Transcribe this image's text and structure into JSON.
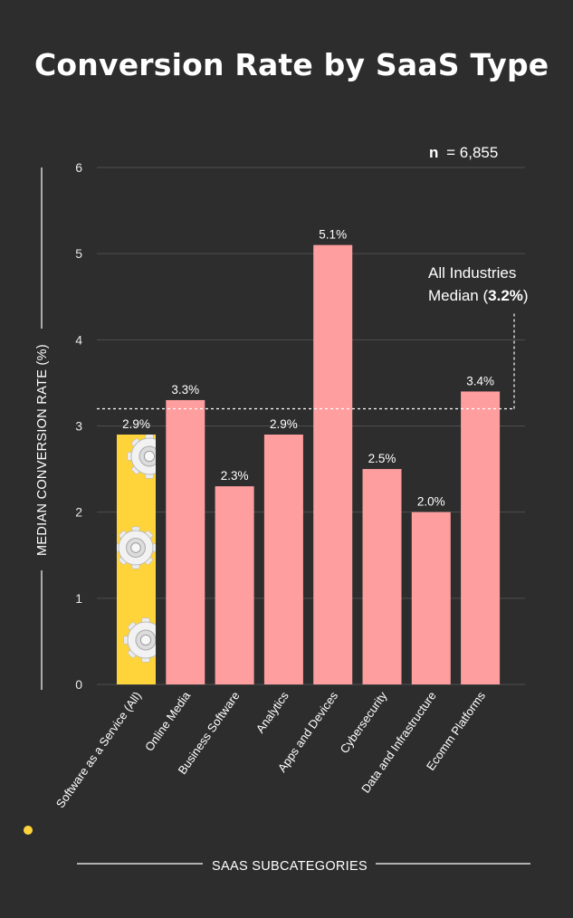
{
  "chart_data": {
    "type": "bar",
    "title": "Conversion Rate by SaaS Type",
    "sample_size_label": "n",
    "sample_size_value": "= 6,855",
    "xlabel": "SAAS SUBCATEGORIES",
    "ylabel": "MEDIAN CONVERSION RATE (%)",
    "ylim": [
      0,
      6
    ],
    "yticks": [
      "0",
      "1",
      "2",
      "3",
      "4",
      "5",
      "6"
    ],
    "grid": true,
    "categories": [
      "Software as a Service (All)",
      "Online Media",
      "Business Software",
      "Analytics",
      "Apps and Devices",
      "Cybersecurity",
      "Data and Infrastructure",
      "Ecomm Platforms"
    ],
    "values": [
      2.9,
      3.3,
      2.3,
      2.9,
      5.1,
      2.5,
      2.0,
      3.4
    ],
    "value_labels": [
      "2.9%",
      "3.3%",
      "2.3%",
      "2.9%",
      "5.1%",
      "2.5%",
      "2.0%",
      "3.4%"
    ],
    "reference_line": {
      "value": 3.2,
      "label_line1": "All Industries",
      "label_line2_prefix": "Median (",
      "label_line2_value": "3.2%",
      "label_line2_suffix": ")"
    },
    "colors": {
      "bar": "#ff9e9e",
      "highlight_bar": "#ffd43b",
      "background": "#2d2d2d",
      "grid": "#4e4e4e",
      "marker_dot": "#ffd43b"
    },
    "highlight_icon": "gear-icon"
  }
}
